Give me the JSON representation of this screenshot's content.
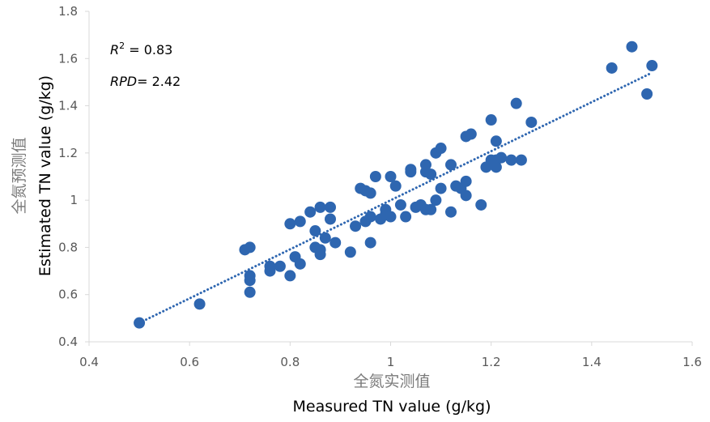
{
  "chart_data": {
    "type": "scatter",
    "title": "",
    "xlabel_cn": "全氮实测值",
    "xlabel": "Measured TN value (g/kg)",
    "ylabel_cn": "全氮预测值",
    "ylabel": "Estimated TN value (g/kg)",
    "xlim": [
      0.4,
      1.6
    ],
    "ylim": [
      0.4,
      1.8
    ],
    "xticks": [
      "0.4",
      "0.6",
      "0.8",
      "1",
      "1.2",
      "1.4",
      "1.6"
    ],
    "yticks": [
      "0.4",
      "0.6",
      "0.8",
      "1",
      "1.2",
      "1.4",
      "1.6",
      "1.8"
    ],
    "grid": false,
    "marker_color": "#2e66b0",
    "trendline": {
      "style": "dotted",
      "color": "#2e66b0",
      "x": [
        0.5,
        1.52
      ],
      "y": [
        0.48,
        1.54
      ]
    },
    "annotations": {
      "r2_symbol": "R",
      "r2_sup": "2",
      "r2_value": " = 0.83",
      "rpd_symbol": "RPD",
      "rpd_value": "= 2.42"
    },
    "points": [
      [
        0.5,
        0.48
      ],
      [
        0.62,
        0.56
      ],
      [
        0.71,
        0.79
      ],
      [
        0.72,
        0.8
      ],
      [
        0.72,
        0.68
      ],
      [
        0.72,
        0.66
      ],
      [
        0.72,
        0.61
      ],
      [
        0.76,
        0.72
      ],
      [
        0.76,
        0.7
      ],
      [
        0.78,
        0.72
      ],
      [
        0.8,
        0.68
      ],
      [
        0.8,
        0.9
      ],
      [
        0.81,
        0.76
      ],
      [
        0.82,
        0.73
      ],
      [
        0.82,
        0.91
      ],
      [
        0.84,
        0.95
      ],
      [
        0.85,
        0.87
      ],
      [
        0.85,
        0.8
      ],
      [
        0.86,
        0.97
      ],
      [
        0.86,
        0.79
      ],
      [
        0.86,
        0.77
      ],
      [
        0.87,
        0.84
      ],
      [
        0.88,
        0.92
      ],
      [
        0.88,
        0.97
      ],
      [
        0.89,
        0.82
      ],
      [
        0.92,
        0.78
      ],
      [
        0.93,
        0.89
      ],
      [
        0.94,
        1.05
      ],
      [
        0.95,
        1.04
      ],
      [
        0.95,
        0.91
      ],
      [
        0.96,
        1.03
      ],
      [
        0.96,
        0.93
      ],
      [
        0.96,
        0.82
      ],
      [
        0.97,
        1.1
      ],
      [
        0.98,
        0.92
      ],
      [
        0.99,
        0.96
      ],
      [
        0.99,
        0.94
      ],
      [
        1.0,
        1.1
      ],
      [
        1.0,
        0.93
      ],
      [
        1.01,
        1.06
      ],
      [
        1.02,
        0.98
      ],
      [
        1.03,
        0.93
      ],
      [
        1.04,
        1.13
      ],
      [
        1.04,
        1.12
      ],
      [
        1.05,
        0.97
      ],
      [
        1.06,
        0.98
      ],
      [
        1.07,
        1.15
      ],
      [
        1.07,
        1.12
      ],
      [
        1.07,
        0.96
      ],
      [
        1.08,
        1.11
      ],
      [
        1.08,
        0.96
      ],
      [
        1.09,
        1.2
      ],
      [
        1.09,
        1.0
      ],
      [
        1.1,
        1.22
      ],
      [
        1.1,
        1.05
      ],
      [
        1.12,
        1.15
      ],
      [
        1.12,
        0.95
      ],
      [
        1.13,
        1.06
      ],
      [
        1.14,
        1.05
      ],
      [
        1.15,
        1.27
      ],
      [
        1.15,
        1.08
      ],
      [
        1.15,
        1.02
      ],
      [
        1.16,
        1.28
      ],
      [
        1.18,
        0.98
      ],
      [
        1.19,
        1.14
      ],
      [
        1.2,
        1.34
      ],
      [
        1.2,
        1.17
      ],
      [
        1.21,
        1.25
      ],
      [
        1.21,
        1.17
      ],
      [
        1.21,
        1.14
      ],
      [
        1.22,
        1.18
      ],
      [
        1.24,
        1.17
      ],
      [
        1.25,
        1.41
      ],
      [
        1.26,
        1.17
      ],
      [
        1.28,
        1.33
      ],
      [
        1.44,
        1.56
      ],
      [
        1.48,
        1.65
      ],
      [
        1.51,
        1.45
      ],
      [
        1.52,
        1.57
      ]
    ]
  }
}
